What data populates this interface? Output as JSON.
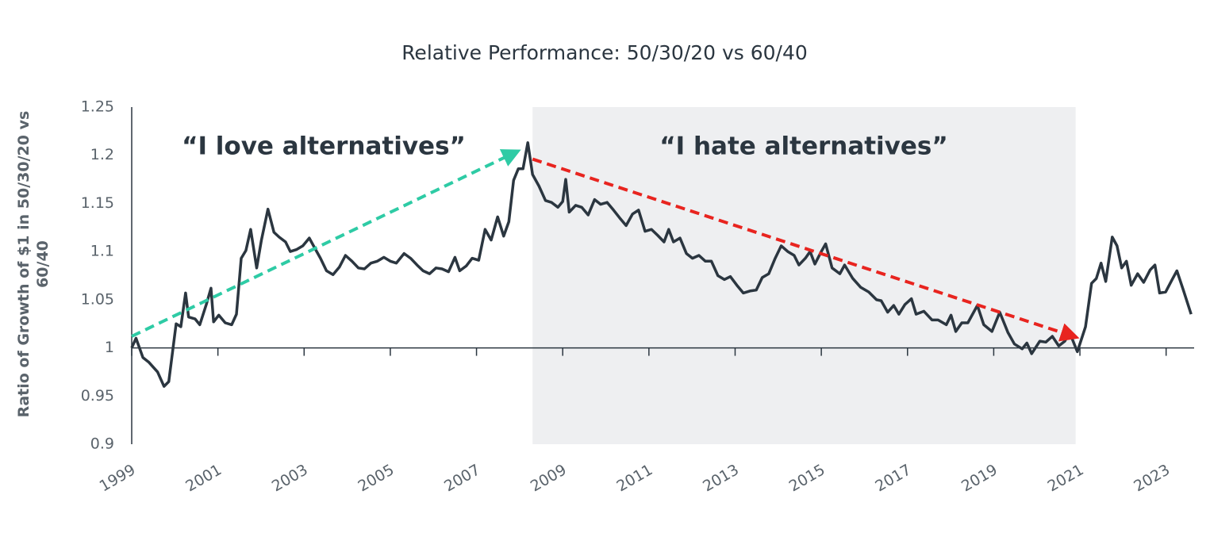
{
  "chart_data": {
    "type": "line",
    "title": "Relative Performance: 50/30/20 vs 60/40",
    "y_label": "Ratio of Growth of $1 in 50/30/20 vs 60/40",
    "color": "#2b3640",
    "x": [
      1999.0,
      1999.1,
      1999.26,
      1999.4,
      1999.6,
      1999.75,
      1999.86,
      2000.03,
      2000.14,
      2000.25,
      2000.32,
      2000.47,
      2000.58,
      2000.73,
      2000.84,
      2000.9,
      2001.02,
      2001.17,
      2001.32,
      2001.43,
      2001.54,
      2001.65,
      2001.76,
      2001.9,
      2002.01,
      2002.16,
      2002.3,
      2002.42,
      2002.57,
      2002.68,
      2002.82,
      2002.97,
      2003.12,
      2003.23,
      2003.38,
      2003.52,
      2003.67,
      2003.82,
      2003.96,
      2004.11,
      2004.26,
      2004.4,
      2004.55,
      2004.7,
      2004.85,
      2005.0,
      2005.14,
      2005.32,
      2005.47,
      2005.62,
      2005.76,
      2005.91,
      2006.06,
      2006.2,
      2006.35,
      2006.5,
      2006.61,
      2006.76,
      2006.9,
      2007.05,
      2007.2,
      2007.34,
      2007.49,
      2007.63,
      2007.75,
      2007.86,
      2007.97,
      2008.08,
      2008.19,
      2008.3,
      2008.45,
      2008.6,
      2008.74,
      2008.89,
      2009.0,
      2009.07,
      2009.15,
      2009.3,
      2009.44,
      2009.59,
      2009.74,
      2009.88,
      2010.03,
      2010.18,
      2010.32,
      2010.47,
      2010.62,
      2010.76,
      2010.91,
      2011.06,
      2011.2,
      2011.35,
      2011.46,
      2011.57,
      2011.72,
      2011.87,
      2012.01,
      2012.16,
      2012.31,
      2012.45,
      2012.6,
      2012.75,
      2012.89,
      2013.04,
      2013.19,
      2013.34,
      2013.49,
      2013.63,
      2013.78,
      2013.93,
      2014.07,
      2014.22,
      2014.37,
      2014.48,
      2014.63,
      2014.74,
      2014.85,
      2015.0,
      2015.1,
      2015.25,
      2015.43,
      2015.54,
      2015.73,
      2015.91,
      2016.1,
      2016.28,
      2016.39,
      2016.54,
      2016.68,
      2016.8,
      2016.94,
      2017.09,
      2017.2,
      2017.38,
      2017.57,
      2017.71,
      2017.9,
      2018.01,
      2018.12,
      2018.26,
      2018.4,
      2018.62,
      2018.77,
      2018.96,
      2019.14,
      2019.33,
      2019.48,
      2019.66,
      2019.77,
      2019.88,
      2020.07,
      2020.21,
      2020.36,
      2020.51,
      2020.65,
      2020.76,
      2020.94,
      2021.13,
      2021.27,
      2021.38,
      2021.49,
      2021.6,
      2021.75,
      2021.86,
      2021.97,
      2022.08,
      2022.19,
      2022.34,
      2022.48,
      2022.63,
      2022.74,
      2022.85,
      2022.99,
      2023.14,
      2023.25,
      2023.4,
      2023.58
    ],
    "values": [
      1.0,
      1.01,
      0.99,
      0.985,
      0.975,
      0.96,
      0.965,
      1.025,
      1.022,
      1.057,
      1.032,
      1.03,
      1.024,
      1.045,
      1.062,
      1.027,
      1.034,
      1.026,
      1.024,
      1.035,
      1.093,
      1.101,
      1.123,
      1.083,
      1.112,
      1.144,
      1.12,
      1.115,
      1.11,
      1.1,
      1.102,
      1.106,
      1.114,
      1.105,
      1.093,
      1.08,
      1.076,
      1.084,
      1.096,
      1.09,
      1.083,
      1.082,
      1.088,
      1.09,
      1.094,
      1.09,
      1.088,
      1.098,
      1.093,
      1.086,
      1.08,
      1.077,
      1.083,
      1.082,
      1.079,
      1.094,
      1.08,
      1.085,
      1.093,
      1.091,
      1.123,
      1.112,
      1.136,
      1.116,
      1.131,
      1.174,
      1.186,
      1.186,
      1.213,
      1.18,
      1.168,
      1.153,
      1.151,
      1.146,
      1.152,
      1.175,
      1.141,
      1.148,
      1.146,
      1.138,
      1.154,
      1.149,
      1.151,
      1.143,
      1.135,
      1.127,
      1.139,
      1.143,
      1.121,
      1.123,
      1.117,
      1.11,
      1.123,
      1.11,
      1.114,
      1.098,
      1.093,
      1.096,
      1.09,
      1.09,
      1.075,
      1.071,
      1.074,
      1.065,
      1.057,
      1.059,
      1.06,
      1.073,
      1.077,
      1.093,
      1.106,
      1.1,
      1.096,
      1.086,
      1.093,
      1.1,
      1.087,
      1.1,
      1.108,
      1.083,
      1.077,
      1.086,
      1.072,
      1.063,
      1.058,
      1.05,
      1.049,
      1.037,
      1.044,
      1.035,
      1.045,
      1.051,
      1.035,
      1.038,
      1.029,
      1.029,
      1.024,
      1.034,
      1.017,
      1.026,
      1.026,
      1.044,
      1.024,
      1.017,
      1.037,
      1.016,
      1.004,
      0.999,
      1.005,
      0.994,
      1.007,
      1.006,
      1.012,
      1.002,
      1.007,
      1.016,
      0.996,
      1.022,
      1.067,
      1.072,
      1.088,
      1.069,
      1.115,
      1.106,
      1.083,
      1.09,
      1.065,
      1.077,
      1.068,
      1.081,
      1.086,
      1.057,
      1.058,
      1.071,
      1.08,
      1.06,
      1.035
    ],
    "xlim": [
      1999,
      2023.65
    ],
    "ylim": [
      0.9,
      1.25
    ],
    "xticks": [
      1999,
      2001,
      2003,
      2005,
      2007,
      2009,
      2011,
      2013,
      2015,
      2017,
      2019,
      2021,
      2023
    ],
    "yticks": [
      0.9,
      0.95,
      1,
      1.05,
      1.1,
      1.15,
      1.2,
      1.25
    ],
    "shaded_region": {
      "xlim": [
        2008.3,
        2020.9
      ],
      "color": "#eeeff1"
    },
    "arrows": [
      {
        "from": [
          1999,
          1.012
        ],
        "to": [
          2007.9,
          1.203
        ],
        "color": "#2ecba5"
      },
      {
        "from": [
          2008.3,
          1.196
        ],
        "to": [
          2020.85,
          1.012
        ],
        "color": "#e8241f"
      }
    ],
    "annotations": [
      {
        "text": "“I love alternatives”"
      },
      {
        "text": "“I hate alternatives”"
      }
    ]
  }
}
